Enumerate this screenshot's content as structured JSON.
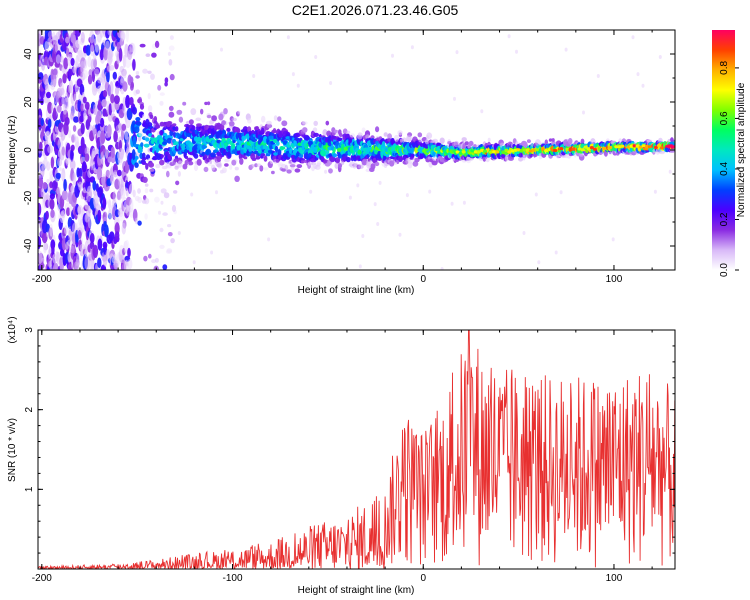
{
  "figure_title": "C2E1.2026.071.23.46.G05",
  "chart_data": [
    {
      "type": "heatmap",
      "title": "",
      "xlabel": "Height of straight line (km)",
      "ylabel": "Frequency (Hz)",
      "xlim": [
        -202,
        132
      ],
      "ylim": [
        -50,
        50
      ],
      "xticks": [
        -200,
        -100,
        0,
        100
      ],
      "yticks": [
        -40,
        -20,
        0,
        20,
        40
      ],
      "xtick_labels": [
        "-200",
        "-100",
        "0",
        "100"
      ],
      "ytick_labels": [
        "-40",
        "-20",
        "0",
        "20",
        "40"
      ],
      "colorbar": {
        "label": "Normalized spectral amplitude",
        "range": [
          0,
          0.95
        ],
        "ticks": [
          0.0,
          0.2,
          0.4,
          0.6,
          0.8
        ],
        "tick_labels": [
          "0.0",
          "0.2",
          "0.4",
          "0.6",
          "0.8"
        ],
        "colors": [
          "#ffffff",
          "#d8b8f8",
          "#8a2be2",
          "#4b00ff",
          "#0040ff",
          "#00c0ff",
          "#00e8c0",
          "#00ff60",
          "#80ff00",
          "#ffff00",
          "#ffb000",
          "#ff4000",
          "#ff0060"
        ]
      },
      "ridge": {
        "description_points_x": [
          -200,
          -160,
          -140,
          -100,
          -60,
          -20,
          0,
          20,
          60,
          100,
          130
        ],
        "center_freq_hz": [
          0,
          2,
          3,
          3,
          1,
          0,
          0,
          -1,
          0,
          1,
          1.5
        ],
        "half_width_hz": [
          45,
          40,
          12,
          9,
          8,
          6,
          4,
          3,
          2.5,
          2,
          2
        ],
        "peak_amplitude": [
          0.25,
          0.3,
          0.35,
          0.4,
          0.45,
          0.5,
          0.55,
          0.65,
          0.75,
          0.8,
          0.9
        ]
      }
    },
    {
      "type": "line",
      "title": "",
      "xlabel": "Height of straight line (km)",
      "ylabel": "SNR (10 * v/v)",
      "y_multiplier_label": "(x10⁴)",
      "xlim": [
        -202,
        132
      ],
      "ylim": [
        0,
        3
      ],
      "xticks": [
        -200,
        -100,
        0,
        100
      ],
      "yticks": [
        1,
        2,
        3
      ],
      "xtick_labels": [
        "-200",
        "-100",
        "0",
        "100"
      ],
      "ytick_labels": [
        "1",
        "2",
        "3"
      ],
      "color": "#e83030",
      "series": [
        {
          "name": "SNR",
          "envelope_x": [
            -202,
            -180,
            -160,
            -140,
            -120,
            -100,
            -80,
            -60,
            -40,
            -20,
            -10,
            0,
            10,
            24,
            40,
            60,
            80,
            100,
            120,
            132
          ],
          "envelope_max": [
            0.03,
            0.05,
            0.07,
            0.12,
            0.2,
            0.25,
            0.35,
            0.55,
            0.7,
            1.05,
            2.05,
            1.75,
            2.15,
            3.0,
            2.55,
            2.45,
            2.45,
            2.45,
            2.6,
            2.2
          ]
        }
      ]
    }
  ]
}
